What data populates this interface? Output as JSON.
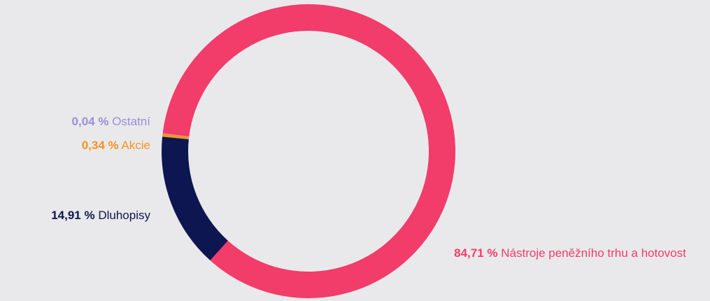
{
  "chart_data": {
    "type": "pie",
    "categories": [
      "Dluhopisy",
      "Akcie",
      "Ostatní",
      "Nástroje peněžního trhu a hotovost"
    ],
    "values": [
      14.91,
      0.34,
      0.04,
      84.71
    ],
    "value_labels": [
      "14,91 %",
      "0,34 %",
      "0,04 %",
      "84,71 %"
    ],
    "colors": [
      "#0d1650",
      "#f7931e",
      "#9b8ed6",
      "#f23c69"
    ]
  }
}
